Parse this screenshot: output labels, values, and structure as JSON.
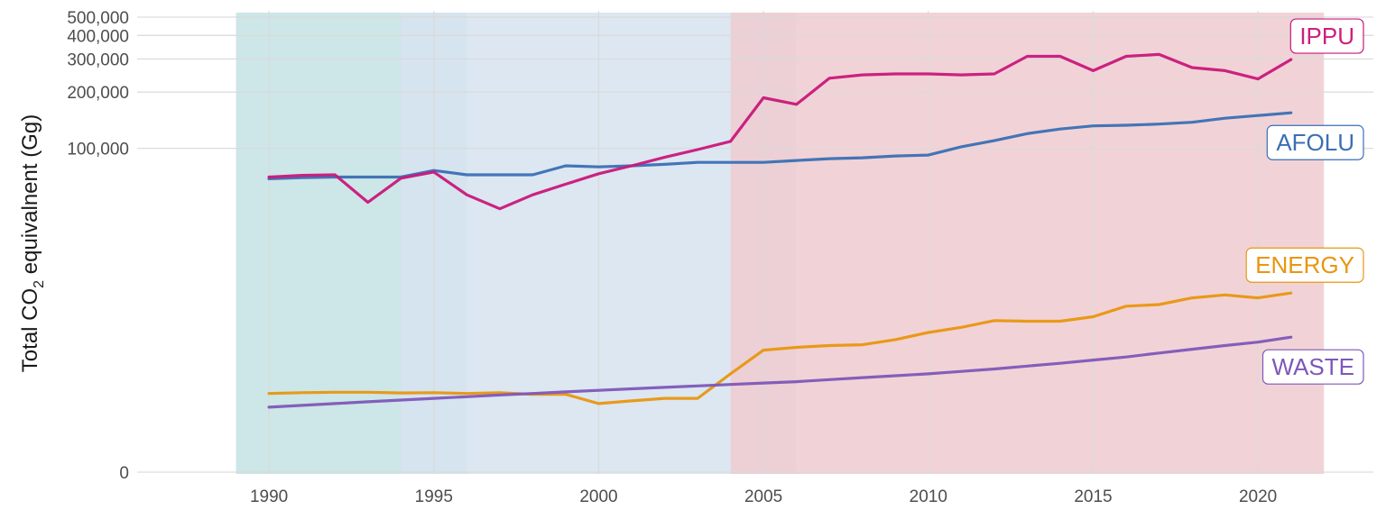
{
  "chart_data": {
    "type": "line",
    "ylabel": "Total CO",
    "ylabel_subscript": "2",
    "ylabel_suffix": " equivalnent (Gg)",
    "xlabel": "",
    "x_ticks": [
      1990,
      1995,
      2000,
      2005,
      2010,
      2015,
      2020
    ],
    "x_tick_labels": [
      "1990",
      "1995",
      "2000",
      "2005",
      "2010",
      "2015",
      "2020"
    ],
    "xlim": [
      1986,
      2023.5
    ],
    "y_scale": "pseudo-log",
    "y_ticks": [
      0,
      100000,
      200000,
      300000,
      400000,
      500000
    ],
    "y_tick_labels": [
      "0",
      "100,000",
      "200,000",
      "300,000",
      "400,000",
      "500,000"
    ],
    "ylim": [
      0,
      500000
    ],
    "grid": true,
    "legend": "direct labels at right end of lines",
    "periods": [
      {
        "start": 1989,
        "end": 1996,
        "color": "#c4e2e3"
      },
      {
        "start": 1994,
        "end": 2006,
        "color": "#d6e3ee"
      },
      {
        "start": 2004,
        "end": 2022,
        "color": "#eecbd0"
      }
    ],
    "x": [
      1990,
      1991,
      1992,
      1993,
      1994,
      1995,
      1996,
      1997,
      1998,
      1999,
      2000,
      2001,
      2002,
      2003,
      2004,
      2005,
      2006,
      2007,
      2008,
      2009,
      2010,
      2011,
      2012,
      2013,
      2014,
      2015,
      2016,
      2017,
      2018,
      2019,
      2020,
      2021
    ],
    "series": [
      {
        "name": "AFOLU",
        "color": "#3a6fb4",
        "label_color": "#3a6fb4",
        "values": [
          68500,
          69500,
          70000,
          70000,
          70000,
          76000,
          72000,
          72000,
          72000,
          80500,
          79500,
          80500,
          82000,
          84000,
          84000,
          84000,
          86000,
          88000,
          89000,
          91000,
          92000,
          102000,
          110000,
          120000,
          127000,
          132000,
          133000,
          135000,
          138000,
          145000,
          150000,
          155000
        ]
      },
      {
        "name": "IPPU",
        "color": "#c9177a",
        "label_color": "#cc1f7e",
        "values": [
          70000,
          71500,
          72000,
          51000,
          69000,
          74500,
          56000,
          47000,
          56000,
          64000,
          73000,
          80500,
          89500,
          98500,
          109000,
          186500,
          172000,
          237000,
          247000,
          250000,
          250000,
          247000,
          250000,
          310000,
          310000,
          260000,
          310000,
          317000,
          270000,
          260000,
          235000,
          298000
        ]
      },
      {
        "name": "ENERGY",
        "color": "#e8960f",
        "label_color": "#e8960f",
        "values": [
          3200,
          3250,
          3280,
          3280,
          3230,
          3250,
          3200,
          3250,
          3150,
          3150,
          2600,
          2750,
          2900,
          2900,
          4600,
          6800,
          7100,
          7300,
          7400,
          8000,
          8900,
          9600,
          10600,
          10500,
          10500,
          11200,
          13000,
          13300,
          14600,
          15200,
          14600,
          15600
        ]
      },
      {
        "name": "WASTE",
        "color": "#7e57b9",
        "label_color": "#7e57b9",
        "values": [
          2400,
          2500,
          2600,
          2700,
          2800,
          2900,
          3000,
          3100,
          3200,
          3300,
          3400,
          3500,
          3600,
          3700,
          3800,
          3900,
          4000,
          4150,
          4300,
          4450,
          4600,
          4800,
          5000,
          5250,
          5500,
          5800,
          6100,
          6500,
          6900,
          7300,
          7700,
          8300
        ]
      }
    ]
  }
}
